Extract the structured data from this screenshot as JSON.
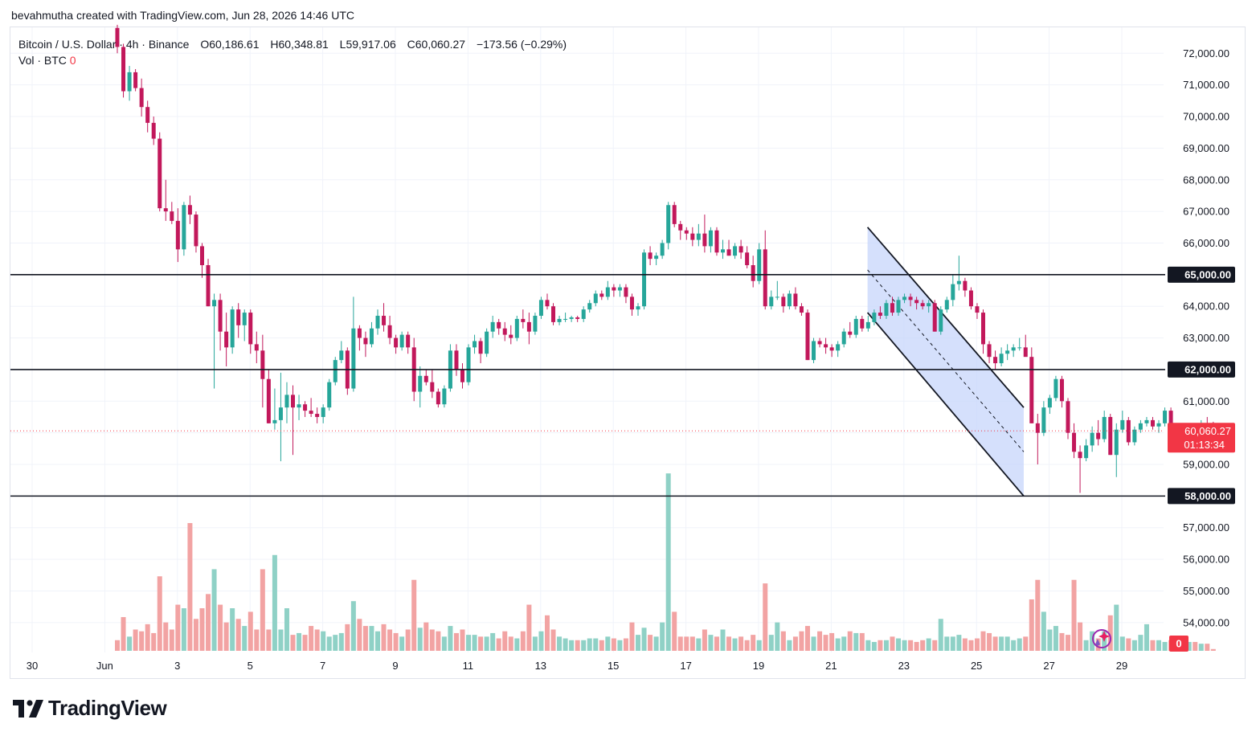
{
  "header": {
    "created_by": "bevahmutha created with TradingView.com, Jun 28, 2026 14:46 UTC"
  },
  "legend": {
    "symbol": "Bitcoin / U.S. Dollar · 4h · Binance",
    "open": "O60,186.61",
    "high": "H60,348.81",
    "low": "L59,917.06",
    "close": "C60,060.27",
    "change": "−173.56 (−0.29%)",
    "volume_label": "Vol · BTC",
    "volume_value": "0"
  },
  "branding": {
    "logo_text": "TradingView"
  },
  "colors": {
    "up": "#26a69a",
    "down": "#c2185b",
    "vol_up": "#8fd1c6",
    "vol_down": "#f2a3a3",
    "grid": "#f0f3fa",
    "channel_fill": "#c7d6fb",
    "last_price_bg": "#f23645",
    "axis_label_bg": "#131722"
  },
  "chart_data": {
    "type": "candlestick",
    "y_range": [
      52700,
      73100
    ],
    "price_ticks": [
      54000,
      55000,
      56000,
      57000,
      58000,
      59000,
      60000,
      61000,
      62000,
      63000,
      64000,
      65000,
      66000,
      67000,
      68000,
      69000,
      70000,
      71000,
      72000
    ],
    "price_tick_labels": [
      "54,000.00",
      "55,000.00",
      "56,000.00",
      "57,000.00",
      "58,000.00",
      "59,000.00",
      "60,000.00",
      "61,000.00",
      "62,000.00",
      "63,000.00",
      "64,000.00",
      "65,000.00",
      "66,000.00",
      "67,000.00",
      "68,000.00",
      "69,000.00",
      "70,000.00",
      "71,000.00",
      "72,000.00"
    ],
    "x_day_range": [
      29.8,
      29.35
    ],
    "x_axis_labels": [
      {
        "day": 30,
        "text": "30"
      },
      {
        "day": 1,
        "text": "Jun"
      },
      {
        "day": 3,
        "text": "3"
      },
      {
        "day": 5,
        "text": "5"
      },
      {
        "day": 7,
        "text": "7"
      },
      {
        "day": 9,
        "text": "9"
      },
      {
        "day": 11,
        "text": "11"
      },
      {
        "day": 13,
        "text": "13"
      },
      {
        "day": 15,
        "text": "15"
      },
      {
        "day": 17,
        "text": "17"
      },
      {
        "day": 19,
        "text": "19"
      },
      {
        "day": 21,
        "text": "21"
      },
      {
        "day": 23,
        "text": "23"
      },
      {
        "day": 25,
        "text": "25"
      },
      {
        "day": 27,
        "text": "27"
      },
      {
        "day": 29,
        "text": "29"
      }
    ],
    "horizontal_levels": [
      {
        "price": 65000,
        "label": "65,000.00"
      },
      {
        "price": 62000,
        "label": "62,000.00"
      },
      {
        "price": 58000,
        "label": "58,000.00"
      }
    ],
    "last_price": {
      "price": 60060.27,
      "label": "60,060.27",
      "countdown": "01:13:34"
    },
    "volume_axis_label": "0",
    "descending_channel": {
      "upper": [
        [
          22.0,
          66500
        ],
        [
          26.3,
          60800
        ]
      ],
      "lower": [
        [
          22.0,
          63800
        ],
        [
          26.3,
          58000
        ]
      ],
      "mid": [
        [
          22.0,
          65150
        ],
        [
          26.3,
          59400
        ]
      ]
    },
    "candles": [
      [
        72800,
        72900,
        72000,
        72200,
        0.3
      ],
      [
        72200,
        72300,
        70600,
        70800,
        0.95
      ],
      [
        70800,
        71600,
        70500,
        71400,
        0.4
      ],
      [
        71400,
        71500,
        70800,
        70900,
        0.6
      ],
      [
        70900,
        71200,
        70000,
        70300,
        0.55
      ],
      [
        70300,
        70500,
        69500,
        69800,
        0.75
      ],
      [
        69800,
        70000,
        69100,
        69300,
        0.5
      ],
      [
        69300,
        69500,
        67000,
        67100,
        2.1
      ],
      [
        67100,
        68000,
        66700,
        67000,
        0.8
      ],
      [
        67000,
        67300,
        66600,
        66700,
        0.6
      ],
      [
        66700,
        67100,
        65400,
        65800,
        1.3
      ],
      [
        65800,
        67300,
        65600,
        67200,
        1.2
      ],
      [
        67200,
        67500,
        66600,
        66900,
        3.6
      ],
      [
        66900,
        67000,
        65700,
        65900,
        0.9
      ],
      [
        65900,
        66000,
        64900,
        65300,
        1.2
      ],
      [
        65300,
        65500,
        64000,
        64000,
        1.6
      ],
      [
        64000,
        64400,
        61400,
        64200,
        2.3
      ],
      [
        64200,
        64400,
        62600,
        63200,
        1.3
      ],
      [
        63200,
        63800,
        62100,
        62700,
        0.8
      ],
      [
        62700,
        64000,
        62500,
        63900,
        1.2
      ],
      [
        63900,
        64100,
        63000,
        63400,
        0.9
      ],
      [
        63400,
        63900,
        62900,
        63800,
        0.7
      ],
      [
        63800,
        63900,
        62500,
        62800,
        1.1
      ],
      [
        62800,
        63200,
        62200,
        62600,
        0.6
      ],
      [
        62600,
        63100,
        60800,
        61700,
        2.3
      ],
      [
        61700,
        62000,
        60300,
        60300,
        0.6
      ],
      [
        60300,
        61400,
        60100,
        60400,
        2.7
      ],
      [
        60400,
        61900,
        59100,
        60800,
        0.6
      ],
      [
        60800,
        61600,
        60300,
        61200,
        1.2
      ],
      [
        61200,
        61500,
        59300,
        60800,
        0.45
      ],
      [
        60800,
        61200,
        60400,
        60900,
        0.5
      ],
      [
        60900,
        61000,
        60500,
        60700,
        0.45
      ],
      [
        60700,
        61100,
        60500,
        60600,
        0.7
      ],
      [
        60600,
        60800,
        60300,
        60500,
        0.6
      ],
      [
        60500,
        60900,
        60300,
        60800,
        0.55
      ],
      [
        60800,
        61700,
        60700,
        61600,
        0.4
      ],
      [
        61600,
        62400,
        61500,
        62300,
        0.45
      ],
      [
        62300,
        62900,
        62200,
        62600,
        0.5
      ],
      [
        62600,
        62700,
        61200,
        61400,
        0.75
      ],
      [
        61400,
        64300,
        61300,
        63300,
        1.4
      ],
      [
        63300,
        63400,
        62600,
        63000,
        0.9
      ],
      [
        63000,
        63200,
        62400,
        62800,
        0.7
      ],
      [
        62800,
        63500,
        62700,
        63300,
        0.7
      ],
      [
        63300,
        63900,
        63100,
        63700,
        0.55
      ],
      [
        63700,
        64100,
        63200,
        63400,
        0.75
      ],
      [
        63400,
        63700,
        62800,
        63000,
        0.6
      ],
      [
        63000,
        63100,
        62500,
        62700,
        0.5
      ],
      [
        62700,
        63200,
        62600,
        63100,
        0.4
      ],
      [
        63100,
        63200,
        62500,
        62700,
        0.6
      ],
      [
        62700,
        63000,
        61000,
        61300,
        2.0
      ],
      [
        61300,
        62100,
        60800,
        61800,
        0.65
      ],
      [
        61800,
        62000,
        61500,
        61600,
        0.8
      ],
      [
        61600,
        62000,
        61100,
        61300,
        0.6
      ],
      [
        61300,
        61400,
        60800,
        60900,
        0.55
      ],
      [
        60900,
        61500,
        60800,
        61400,
        0.4
      ],
      [
        61400,
        62800,
        61300,
        62600,
        0.7
      ],
      [
        62600,
        62800,
        61800,
        62000,
        0.5
      ],
      [
        62000,
        62200,
        61400,
        61600,
        0.6
      ],
      [
        61600,
        62800,
        61500,
        62700,
        0.45
      ],
      [
        62700,
        63100,
        62500,
        62900,
        0.45
      ],
      [
        62900,
        63000,
        62200,
        62500,
        0.4
      ],
      [
        62500,
        63300,
        62400,
        63200,
        0.4
      ],
      [
        63200,
        63700,
        63000,
        63500,
        0.5
      ],
      [
        63500,
        63600,
        63100,
        63300,
        0.35
      ],
      [
        63300,
        63500,
        62900,
        63100,
        0.55
      ],
      [
        63100,
        63400,
        62800,
        63000,
        0.4
      ],
      [
        63000,
        63700,
        62900,
        63600,
        0.35
      ],
      [
        63600,
        63900,
        63300,
        63500,
        0.55
      ],
      [
        63500,
        63800,
        62800,
        63200,
        1.3
      ],
      [
        63200,
        63800,
        63100,
        63700,
        0.4
      ],
      [
        63700,
        64300,
        63600,
        64200,
        0.55
      ],
      [
        64200,
        64400,
        63900,
        64000,
        1.0
      ],
      [
        64000,
        64100,
        63400,
        63500,
        0.6
      ],
      [
        63500,
        63700,
        63400,
        63600,
        0.4
      ],
      [
        63600,
        63800,
        63500,
        63600,
        0.35
      ],
      [
        63600,
        63700,
        63500,
        63650,
        0.3
      ],
      [
        63650,
        63700,
        63500,
        63600,
        0.3
      ],
      [
        63600,
        64000,
        63500,
        63900,
        0.3
      ],
      [
        63900,
        64200,
        63800,
        64100,
        0.35
      ],
      [
        64100,
        64500,
        64000,
        64400,
        0.35
      ],
      [
        64400,
        64500,
        64200,
        64300,
        0.3
      ],
      [
        64300,
        64800,
        64200,
        64600,
        0.4
      ],
      [
        64600,
        64700,
        64300,
        64500,
        0.35
      ],
      [
        64500,
        64700,
        64300,
        64600,
        0.3
      ],
      [
        64600,
        64700,
        64100,
        64300,
        0.35
      ],
      [
        64300,
        64400,
        63700,
        63900,
        0.8
      ],
      [
        63900,
        64100,
        63700,
        64000,
        0.45
      ],
      [
        64000,
        65800,
        63900,
        65700,
        0.65
      ],
      [
        65700,
        65900,
        65300,
        65500,
        0.45
      ],
      [
        65500,
        65700,
        65300,
        65600,
        0.4
      ],
      [
        65600,
        66100,
        65500,
        66000,
        0.8
      ],
      [
        66000,
        67300,
        65800,
        67200,
        5.0
      ],
      [
        67200,
        67300,
        66500,
        66600,
        1.1
      ],
      [
        66600,
        66700,
        66100,
        66400,
        0.4
      ],
      [
        66400,
        66500,
        66100,
        66300,
        0.4
      ],
      [
        66300,
        66500,
        65900,
        66100,
        0.4
      ],
      [
        66100,
        66600,
        65900,
        66300,
        0.35
      ],
      [
        66300,
        66900,
        65700,
        65900,
        0.6
      ],
      [
        65900,
        66500,
        65700,
        66400,
        0.45
      ],
      [
        66400,
        66500,
        65600,
        65700,
        0.4
      ],
      [
        65700,
        66100,
        65500,
        65800,
        0.6
      ],
      [
        65800,
        66100,
        65600,
        65600,
        0.4
      ],
      [
        65600,
        66000,
        65500,
        65900,
        0.35
      ],
      [
        65900,
        66100,
        65500,
        65700,
        0.4
      ],
      [
        65700,
        65900,
        65200,
        65300,
        0.3
      ],
      [
        65300,
        65600,
        64600,
        64800,
        0.45
      ],
      [
        64800,
        66000,
        64700,
        65800,
        0.3
      ],
      [
        65800,
        66400,
        63900,
        64000,
        1.9
      ],
      [
        64000,
        64500,
        63900,
        64300,
        0.45
      ],
      [
        64300,
        64800,
        64200,
        64300,
        0.8
      ],
      [
        64300,
        64400,
        63800,
        64000,
        0.55
      ],
      [
        64000,
        64500,
        63900,
        64400,
        0.3
      ],
      [
        64400,
        64600,
        63900,
        64000,
        0.4
      ],
      [
        64000,
        64100,
        63700,
        63800,
        0.55
      ],
      [
        63800,
        63900,
        62300,
        62300,
        0.7
      ],
      [
        62300,
        63000,
        62200,
        62900,
        0.4
      ],
      [
        62900,
        63000,
        62700,
        62800,
        0.55
      ],
      [
        62800,
        63000,
        62500,
        62700,
        0.45
      ],
      [
        62700,
        62800,
        62400,
        62600,
        0.5
      ],
      [
        62600,
        62900,
        62400,
        62800,
        0.35
      ],
      [
        62800,
        63300,
        62700,
        63200,
        0.4
      ],
      [
        63200,
        63500,
        63000,
        63100,
        0.55
      ],
      [
        63100,
        63700,
        63000,
        63600,
        0.5
      ],
      [
        63600,
        63700,
        63200,
        63300,
        0.5
      ],
      [
        63300,
        63700,
        63200,
        63500,
        0.3
      ],
      [
        63500,
        63900,
        63400,
        63800,
        0.25
      ],
      [
        63800,
        64000,
        63600,
        63700,
        0.3
      ],
      [
        63700,
        64200,
        63600,
        64100,
        0.3
      ],
      [
        64100,
        64300,
        63700,
        63800,
        0.4
      ],
      [
        63800,
        64300,
        63700,
        64200,
        0.35
      ],
      [
        64200,
        64400,
        64100,
        64300,
        0.3
      ],
      [
        64300,
        64400,
        64000,
        64200,
        0.3
      ],
      [
        64200,
        64300,
        63900,
        64100,
        0.25
      ],
      [
        64100,
        64200,
        63900,
        64000,
        0.3
      ],
      [
        64000,
        64200,
        63800,
        64100,
        0.35
      ],
      [
        64100,
        64200,
        63200,
        63200,
        0.3
      ],
      [
        63200,
        64000,
        63100,
        63900,
        0.9
      ],
      [
        63900,
        64300,
        63800,
        64200,
        0.4
      ],
      [
        64200,
        65000,
        64000,
        64700,
        0.4
      ],
      [
        64700,
        65600,
        64500,
        64800,
        0.45
      ],
      [
        64800,
        64900,
        64300,
        64500,
        0.35
      ],
      [
        64500,
        64600,
        63900,
        64000,
        0.3
      ],
      [
        64000,
        64100,
        63600,
        63800,
        0.35
      ],
      [
        63800,
        63900,
        62500,
        62800,
        0.55
      ],
      [
        62800,
        62900,
        62200,
        62400,
        0.5
      ],
      [
        62400,
        62600,
        62000,
        62200,
        0.4
      ],
      [
        62200,
        62700,
        62100,
        62500,
        0.4
      ],
      [
        62500,
        62800,
        62300,
        62600,
        0.4
      ],
      [
        62600,
        62800,
        62400,
        62700,
        0.3
      ],
      [
        62700,
        63000,
        62600,
        62700,
        0.35
      ],
      [
        62700,
        63100,
        62500,
        62400,
        0.4
      ],
      [
        62400,
        62700,
        60300,
        60300,
        1.45
      ],
      [
        60300,
        60600,
        59000,
        60000,
        2.0
      ],
      [
        60000,
        61000,
        59900,
        60800,
        1.1
      ],
      [
        60800,
        61200,
        60600,
        61100,
        0.6
      ],
      [
        61100,
        61800,
        61000,
        61700,
        0.7
      ],
      [
        61700,
        61800,
        60800,
        61000,
        0.5
      ],
      [
        61000,
        61100,
        59800,
        60000,
        0.45
      ],
      [
        60000,
        60300,
        59200,
        59400,
        2.0
      ],
      [
        59400,
        59600,
        58100,
        59200,
        0.8
      ],
      [
        59200,
        59800,
        59100,
        59600,
        0.3
      ],
      [
        59600,
        60200,
        59400,
        60000,
        0.55
      ],
      [
        60000,
        60400,
        59600,
        59800,
        0.35
      ],
      [
        59800,
        60700,
        59700,
        60500,
        0.55
      ],
      [
        60500,
        60600,
        59300,
        59300,
        1.0
      ],
      [
        59300,
        60300,
        58600,
        60100,
        1.3
      ],
      [
        60100,
        60700,
        60000,
        60400,
        0.4
      ],
      [
        60400,
        60500,
        59600,
        59700,
        0.35
      ],
      [
        59700,
        60200,
        59600,
        60100,
        0.3
      ],
      [
        60100,
        60400,
        60000,
        60300,
        0.45
      ],
      [
        60300,
        60500,
        60200,
        60400,
        0.75
      ],
      [
        60400,
        60500,
        60100,
        60200,
        0.3
      ],
      [
        60200,
        60400,
        60000,
        60300,
        0.3
      ],
      [
        60300,
        60800,
        60200,
        60700,
        0.25
      ],
      [
        60700,
        60800,
        60100,
        60200,
        0.3
      ],
      [
        60200,
        60300,
        59900,
        60000,
        0.35
      ],
      [
        60000,
        60200,
        59900,
        60100,
        0.3
      ],
      [
        60100,
        60200,
        59800,
        60150,
        0.25
      ],
      [
        60150,
        60300,
        59900,
        60100,
        0.25
      ],
      [
        60100,
        60400,
        60000,
        60300,
        0.2
      ],
      [
        60300,
        60500,
        60100,
        60190,
        0.2
      ],
      [
        60186.61,
        60348.81,
        59917.06,
        60060.27,
        0.05
      ]
    ]
  }
}
